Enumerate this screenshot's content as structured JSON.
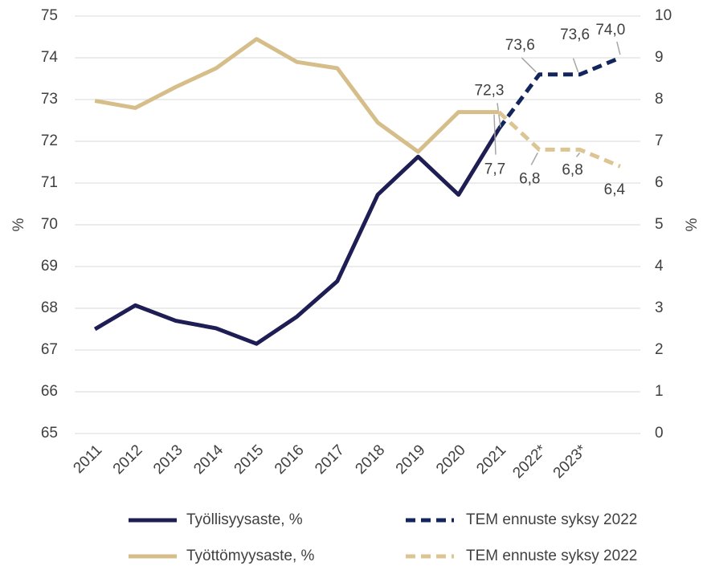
{
  "chart_data": {
    "type": "line",
    "categories": [
      "2011",
      "2012",
      "2013",
      "2014",
      "2015",
      "2016",
      "2017",
      "2018",
      "2019",
      "2020",
      "2021",
      "2022*",
      "2023*",
      null
    ],
    "ylabel": "%",
    "y2label": "%",
    "ylim": [
      65,
      75
    ],
    "yticks": [
      65,
      66,
      67,
      68,
      69,
      70,
      71,
      72,
      73,
      74,
      75
    ],
    "y2lim": [
      0,
      10
    ],
    "y2ticks": [
      0,
      1,
      2,
      3,
      4,
      5,
      6,
      7,
      8,
      9,
      10
    ],
    "grid": true,
    "legend": "bottom",
    "series": [
      {
        "name": "Työllisyysaste, %",
        "color": "#1e1e55",
        "dashed": false,
        "values": [
          67.5,
          68.07,
          67.7,
          67.52,
          67.15,
          67.8,
          68.65,
          70.72,
          71.63,
          70.72,
          72.3,
          null,
          null,
          null
        ]
      },
      {
        "name": "TEM ennuste syksy 2022",
        "color": "#13265c",
        "dashed": true,
        "values": [
          null,
          null,
          null,
          null,
          null,
          null,
          null,
          null,
          null,
          null,
          72.3,
          73.6,
          73.6,
          74.0
        ],
        "value_labels": [
          null,
          null,
          null,
          null,
          null,
          null,
          null,
          null,
          null,
          null,
          "72,3",
          "73,6",
          "73,6",
          "74,0"
        ]
      },
      {
        "name": "Työttömyysaste, %",
        "color": "#d6be8a",
        "axis": "y2",
        "dashed": false,
        "values": [
          7.97,
          7.8,
          8.3,
          8.75,
          9.45,
          8.9,
          8.75,
          7.45,
          6.75,
          7.7,
          7.7,
          null,
          null,
          null
        ]
      },
      {
        "name": "TEM ennuste syksy 2022",
        "color": "#dcc592",
        "axis": "y2",
        "dashed": true,
        "values": [
          null,
          null,
          null,
          null,
          null,
          null,
          null,
          null,
          null,
          null,
          7.7,
          6.8,
          6.8,
          6.4
        ],
        "value_labels": [
          null,
          null,
          null,
          null,
          null,
          null,
          null,
          null,
          null,
          null,
          "7,7",
          "6,8",
          "6,8",
          "6,4"
        ]
      }
    ]
  }
}
